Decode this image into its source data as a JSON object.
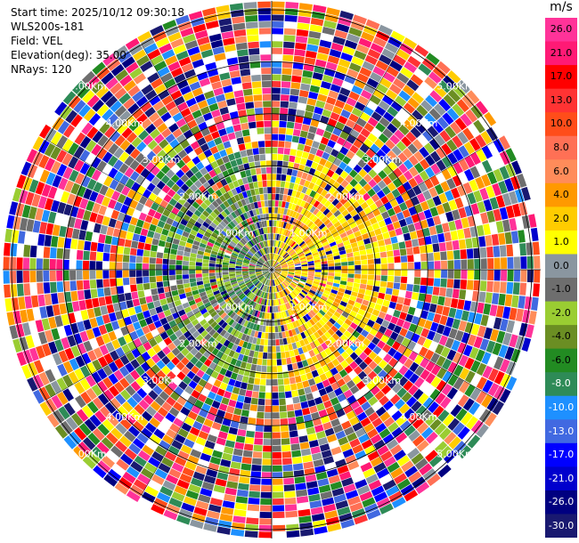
{
  "header": {
    "start_time": "Start time: 2025/10/12 09:30:18",
    "station": "WLS200s-181",
    "field": "Field: VEL",
    "elevation": "Elevation(deg): 35.00",
    "nrays": "NRays: 120"
  },
  "colorbar": {
    "unit": "m/s",
    "ticks": [
      "26.0",
      "21.0",
      "17.0",
      "13.0",
      "10.0",
      "8.0",
      "6.0",
      "4.0",
      "2.0",
      "1.0",
      "0.0",
      "-1.0",
      "-2.0",
      "-4.0",
      "-6.0",
      "-8.0",
      "-10.0",
      "-13.0",
      "-17.0",
      "-21.0",
      "-26.0",
      "-30.0"
    ],
    "colors": [
      "#ff3399",
      "#ff1a75",
      "#ff0000",
      "#ff3333",
      "#ff4d1a",
      "#ff7055",
      "#ff8c5a",
      "#ff9900",
      "#ffcc00",
      "#ffff00",
      "#8a96a0",
      "#6e6e6e",
      "#9acd32",
      "#6b8e23",
      "#228b22",
      "#2e8b57",
      "#1e90ff",
      "#4169e1",
      "#0000ff",
      "#0000cd",
      "#000080",
      "#191970"
    ]
  },
  "range_labels": [
    "1.00Km",
    "2.00Km",
    "3.00Km",
    "4.00Km",
    "5.00Km"
  ],
  "range_rings_km": [
    1,
    2,
    3,
    4,
    5
  ],
  "max_range_km": 5
}
